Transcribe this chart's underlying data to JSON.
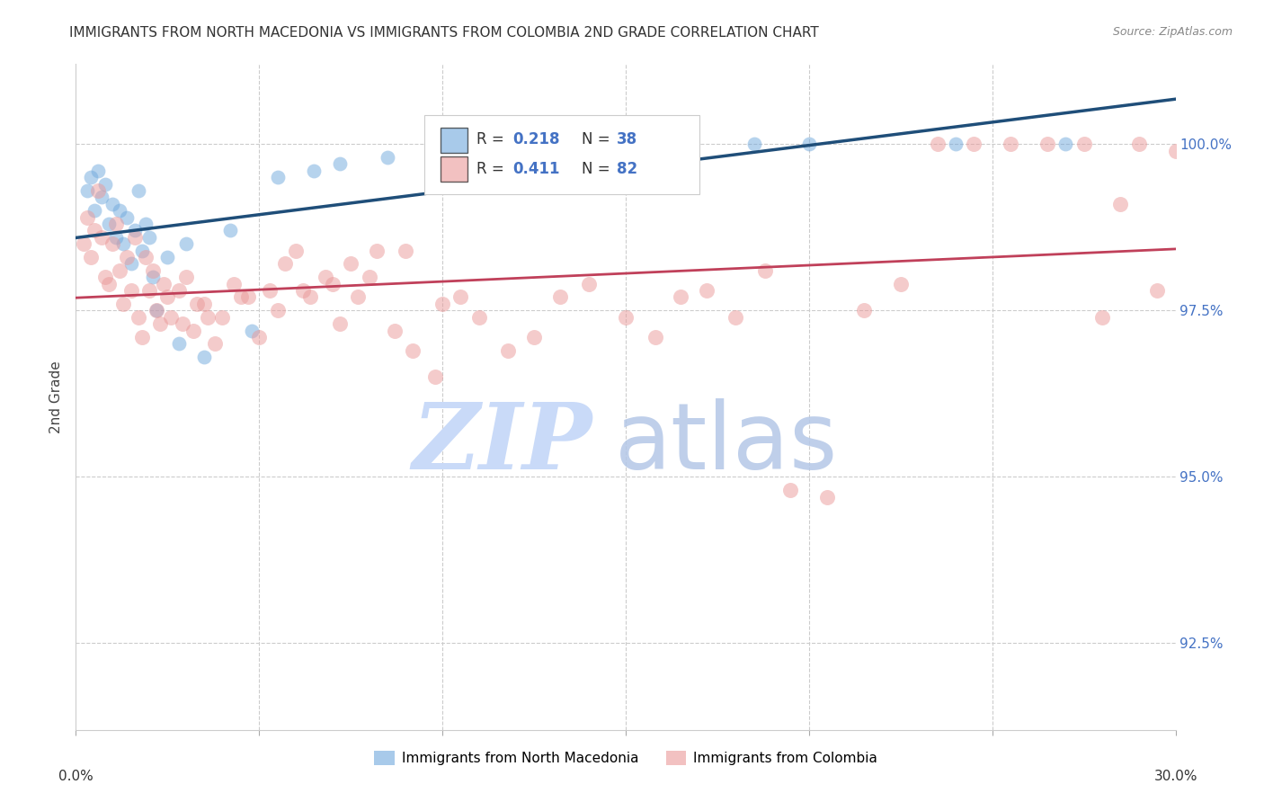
{
  "title": "IMMIGRANTS FROM NORTH MACEDONIA VS IMMIGRANTS FROM COLOMBIA 2ND GRADE CORRELATION CHART",
  "source": "Source: ZipAtlas.com",
  "ylabel": "2nd Grade",
  "y_ticks": [
    92.5,
    95.0,
    97.5,
    100.0
  ],
  "y_tick_labels": [
    "92.5%",
    "95.0%",
    "97.5%",
    "100.0%"
  ],
  "x_min": 0.0,
  "x_max": 30.0,
  "y_min": 91.2,
  "y_max": 101.2,
  "legend_blue_r": "0.218",
  "legend_blue_n": "38",
  "legend_pink_r": "0.411",
  "legend_pink_n": "82",
  "legend_label_blue": "Immigrants from North Macedonia",
  "legend_label_pink": "Immigrants from Colombia",
  "blue_color": "#6fa8dc",
  "pink_color": "#ea9999",
  "trendline_blue_color": "#1f4e79",
  "trendline_pink_color": "#c0405a",
  "r_label_color": "#4472c4",
  "watermark_zip_color": "#c9daf8",
  "watermark_atlas_color": "#b4c7e7",
  "blue_scatter_x": [
    0.3,
    0.4,
    0.5,
    0.6,
    0.7,
    0.8,
    0.9,
    1.0,
    1.1,
    1.2,
    1.3,
    1.4,
    1.5,
    1.6,
    1.7,
    1.8,
    1.9,
    2.0,
    2.1,
    2.2,
    2.5,
    2.8,
    3.0,
    3.5,
    4.2,
    4.8,
    5.5,
    6.5,
    7.2,
    8.5,
    10.5,
    12.5,
    14.0,
    16.0,
    18.5,
    20.0,
    24.0,
    27.0
  ],
  "blue_scatter_y": [
    99.3,
    99.5,
    99.0,
    99.6,
    99.2,
    99.4,
    98.8,
    99.1,
    98.6,
    99.0,
    98.5,
    98.9,
    98.2,
    98.7,
    99.3,
    98.4,
    98.8,
    98.6,
    98.0,
    97.5,
    98.3,
    97.0,
    98.5,
    96.8,
    98.7,
    97.2,
    99.5,
    99.6,
    99.7,
    99.8,
    100.0,
    100.0,
    100.0,
    100.0,
    100.0,
    100.0,
    100.0,
    100.0
  ],
  "pink_scatter_x": [
    0.2,
    0.3,
    0.4,
    0.5,
    0.6,
    0.7,
    0.8,
    0.9,
    1.0,
    1.1,
    1.2,
    1.3,
    1.4,
    1.5,
    1.6,
    1.7,
    1.8,
    1.9,
    2.0,
    2.1,
    2.2,
    2.3,
    2.4,
    2.5,
    2.6,
    2.8,
    3.0,
    3.2,
    3.5,
    3.8,
    4.0,
    4.3,
    4.7,
    5.0,
    5.3,
    5.7,
    6.0,
    6.4,
    6.8,
    7.2,
    7.7,
    8.2,
    8.7,
    9.2,
    9.8,
    10.5,
    11.0,
    11.8,
    12.5,
    13.2,
    14.0,
    15.0,
    15.8,
    16.5,
    17.2,
    18.0,
    18.8,
    19.5,
    20.5,
    21.5,
    22.5,
    23.5,
    24.5,
    25.5,
    26.5,
    27.5,
    28.5,
    29.0,
    29.5,
    30.0,
    2.9,
    3.3,
    3.6,
    4.5,
    5.5,
    6.2,
    7.0,
    7.5,
    8.0,
    9.0,
    10.0,
    28.0
  ],
  "pink_scatter_y": [
    98.5,
    98.9,
    98.3,
    98.7,
    99.3,
    98.6,
    98.0,
    97.9,
    98.5,
    98.8,
    98.1,
    97.6,
    98.3,
    97.8,
    98.6,
    97.4,
    97.1,
    98.3,
    97.8,
    98.1,
    97.5,
    97.3,
    97.9,
    97.7,
    97.4,
    97.8,
    98.0,
    97.2,
    97.6,
    97.0,
    97.4,
    97.9,
    97.7,
    97.1,
    97.8,
    98.2,
    98.4,
    97.7,
    98.0,
    97.3,
    97.7,
    98.4,
    97.2,
    96.9,
    96.5,
    97.7,
    97.4,
    96.9,
    97.1,
    97.7,
    97.9,
    97.4,
    97.1,
    97.7,
    97.8,
    97.4,
    98.1,
    94.8,
    94.7,
    97.5,
    97.9,
    100.0,
    100.0,
    100.0,
    100.0,
    100.0,
    99.1,
    100.0,
    97.8,
    99.9,
    97.3,
    97.6,
    97.4,
    97.7,
    97.5,
    97.8,
    97.9,
    98.2,
    98.0,
    98.4,
    97.6,
    97.4
  ]
}
